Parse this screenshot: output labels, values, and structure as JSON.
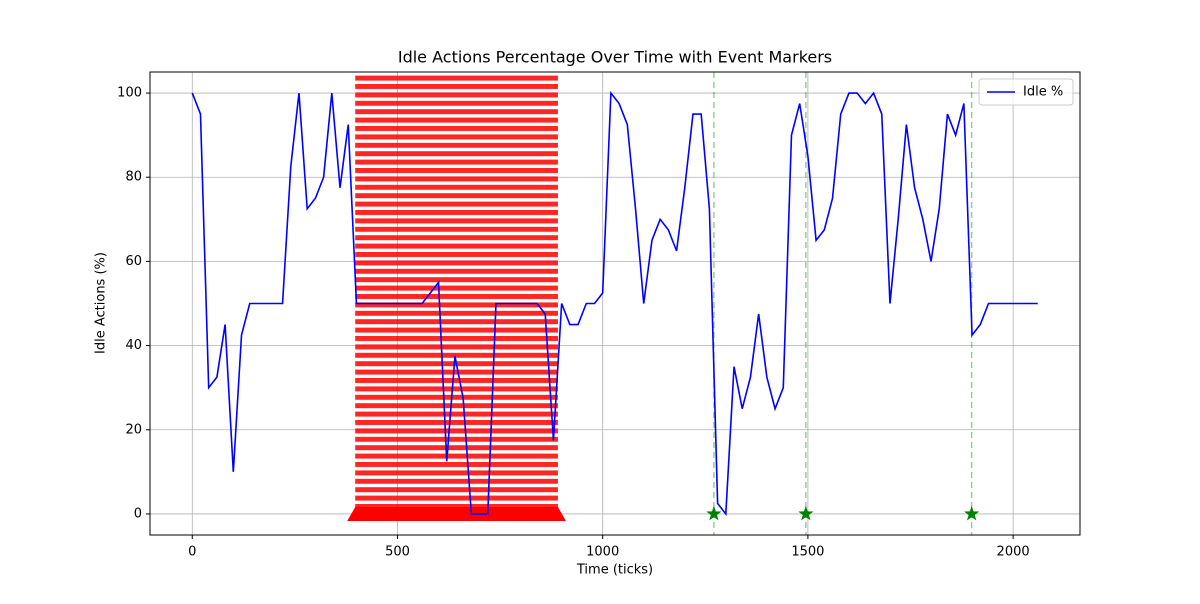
{
  "chart_data": {
    "type": "line",
    "title": "Idle Actions Percentage Over Time with Event Markers",
    "x_label": "Time (ticks)",
    "y_label": "Idle Actions (%)",
    "x": [
      0,
      20,
      40,
      60,
      80,
      100,
      120,
      140,
      160,
      180,
      200,
      220,
      240,
      260,
      280,
      300,
      320,
      340,
      360,
      380,
      400,
      420,
      440,
      460,
      480,
      500,
      520,
      540,
      560,
      580,
      600,
      620,
      640,
      660,
      680,
      700,
      720,
      740,
      760,
      780,
      800,
      820,
      840,
      860,
      880,
      900,
      920,
      940,
      960,
      980,
      1000,
      1020,
      1040,
      1060,
      1080,
      1100,
      1120,
      1140,
      1160,
      1180,
      1200,
      1220,
      1240,
      1260,
      1280,
      1300,
      1320,
      1340,
      1360,
      1380,
      1400,
      1420,
      1440,
      1460,
      1480,
      1500,
      1520,
      1540,
      1560,
      1580,
      1600,
      1620,
      1640,
      1660,
      1680,
      1700,
      1720,
      1740,
      1760,
      1780,
      1800,
      1820,
      1840,
      1860,
      1880,
      1900,
      1920,
      1940,
      1960,
      1980,
      2000,
      2020,
      2040,
      2060
    ],
    "series": [
      {
        "name": "Idle %",
        "color": "#0000ff",
        "values": [
          100,
          95,
          30,
          32.5,
          45,
          10,
          42.5,
          50,
          50,
          50,
          50,
          50,
          82.5,
          100,
          72.5,
          75,
          80,
          100,
          77.5,
          92.5,
          50,
          50,
          50,
          50,
          50,
          50,
          50,
          50,
          50,
          52.5,
          55,
          12.5,
          37.5,
          27.5,
          0,
          0,
          0,
          50,
          50,
          50,
          50,
          50,
          50,
          47.5,
          17.5,
          50,
          45,
          45,
          50,
          50,
          52.5,
          100,
          97.5,
          92.5,
          72.5,
          50,
          65,
          70,
          67.5,
          62.5,
          77.5,
          95,
          95,
          72.5,
          2.5,
          0,
          35,
          25,
          32.5,
          47.5,
          32.5,
          25,
          30,
          90,
          97.5,
          85,
          65,
          67.5,
          75,
          95,
          100,
          100,
          97.5,
          100,
          95,
          50,
          70,
          92.5,
          77.5,
          70,
          60,
          72.5,
          95,
          90,
          97.5,
          42.5,
          45,
          50,
          50,
          50,
          50,
          50,
          50,
          50
        ]
      }
    ],
    "spans": [
      {
        "start": 397,
        "end": 891,
        "color": "#ff0000"
      }
    ],
    "events": [
      {
        "x": 1271,
        "y": 0
      },
      {
        "x": 1495,
        "y": 0
      },
      {
        "x": 1899,
        "y": 0
      }
    ],
    "event_color": "#008000",
    "xlim": [
      -103,
      2163
    ],
    "ylim": [
      -5,
      105
    ],
    "xticks": [
      0,
      500,
      1000,
      1500,
      2000
    ],
    "yticks": [
      0,
      20,
      40,
      60,
      80,
      100
    ],
    "grid": true,
    "legend": "upper right"
  }
}
